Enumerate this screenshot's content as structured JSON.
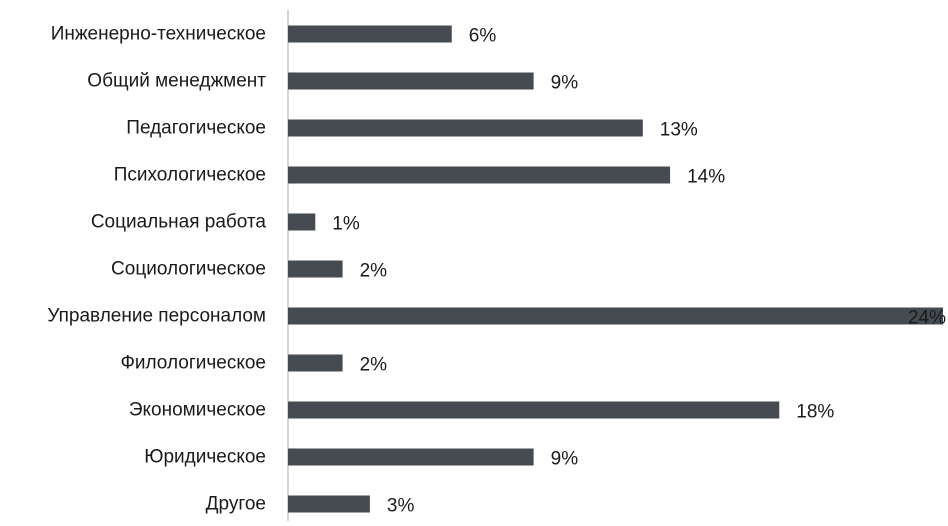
{
  "colors": {
    "bar": "#464b51",
    "axis": "#c8c8c8",
    "text": "#1a1a1a",
    "background": "#ffffff"
  },
  "chart_data": {
    "type": "bar",
    "orientation": "horizontal",
    "title": "",
    "xlabel": "",
    "ylabel": "",
    "value_suffix": "%",
    "xlim": [
      0,
      24
    ],
    "grid": false,
    "legend": "none",
    "categories": [
      "Инженерно-техническое",
      "Общий менеджмент",
      "Педагогическое",
      "Психологическое",
      "Социальная работа",
      "Социологическое",
      "Управление персоналом",
      "Филологическое",
      "Экономическое",
      "Юридическое",
      "Другое"
    ],
    "values": [
      6,
      9,
      13,
      14,
      1,
      2,
      24,
      2,
      18,
      9,
      3
    ],
    "data_labels": [
      "6%",
      "9%",
      "13%",
      "14%",
      "1%",
      "2%",
      "24%",
      "2%",
      "18%",
      "9%",
      "3%"
    ]
  }
}
